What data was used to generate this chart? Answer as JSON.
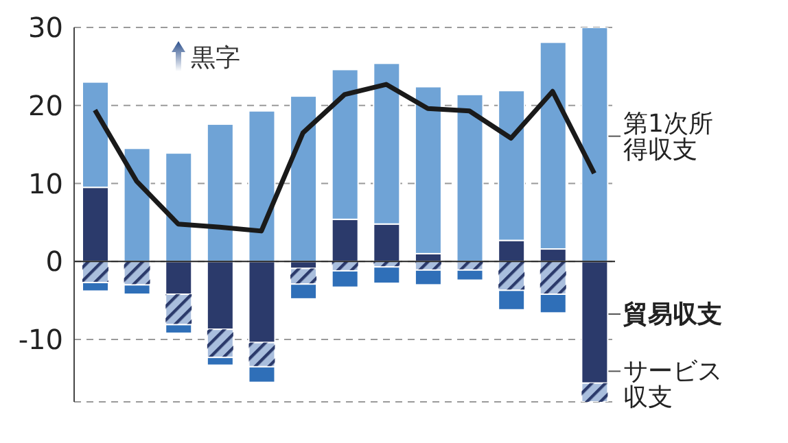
{
  "chart_data": {
    "type": "bar",
    "stacked": true,
    "categories": [
      null,
      null,
      null,
      null,
      null,
      null,
      null,
      null,
      null,
      null,
      null,
      null,
      null
    ],
    "series": [
      {
        "name": "貿易収支",
        "color": "#2b3a6b",
        "values": [
          9.5,
          0,
          -4.2,
          -8.7,
          -10.4,
          -0.9,
          5.4,
          4.8,
          1.0,
          null,
          2.7,
          1.6,
          -15.6
        ]
      },
      {
        "name": "第1次所得収支",
        "color": "#6fa3d6",
        "values": [
          13.5,
          14.5,
          13.9,
          17.6,
          19.3,
          21.2,
          19.2,
          20.6,
          21.4,
          21.4,
          19.2,
          26.5,
          30
        ]
      },
      {
        "name": "サービス収支",
        "color": "#a9bedd",
        "values": [
          -2.7,
          -3.0,
          -3.9,
          -3.6,
          -3.1,
          -2.0,
          -1.2,
          -0.7,
          -1.1,
          -1.1,
          -3.7,
          -4.2,
          -2.4
        ]
      },
      {
        "color": "#2f6fb8",
        "values": [
          -1.1,
          -1.2,
          -1.1,
          -1.0,
          -2.0,
          -1.9,
          -2.1,
          -2.1,
          -1.9,
          -1.3,
          -2.5,
          -2.4,
          null
        ]
      },
      {
        "type": "line",
        "color": "#1a1a1a",
        "values": [
          19.4,
          10.3,
          4.8,
          4.4,
          3.9,
          16.5,
          21.4,
          22.7,
          19.6,
          19.3,
          15.8,
          21.8,
          11.3
        ]
      }
    ],
    "ylim": [
      -18,
      30
    ],
    "yticks": [
      -10,
      0,
      10,
      20,
      30
    ],
    "grid": "y",
    "legend": false,
    "ref_lines": [
      {
        "axis": "y",
        "value": 0,
        "color": "#222222"
      }
    ],
    "annotations": [
      "黒字"
    ]
  }
}
